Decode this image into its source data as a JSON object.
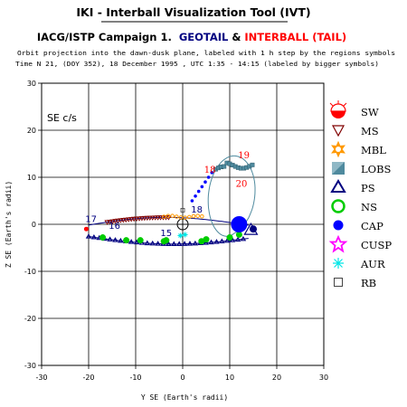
{
  "header": {
    "title": "IKI - Interball Visualization Tool (IVT)",
    "campaign": "IACG/ISTP Campaign 1.",
    "sat1": "GEOTAIL",
    "amp": "&",
    "sat2": "INTERBALL (TAIL)",
    "subtitle1": "Orbit projection into the dawn-dusk plane, labeled with 1 h step by the regions symbols",
    "subtitle2": "Time N 21, (DOY 352), 18 December 1995 ,  UTC 1:35 - 14:15 (labeled by bigger symbols)"
  },
  "colors": {
    "geotail": "#000080",
    "interball": "#ff0000"
  },
  "chart_data": {
    "type": "scatter",
    "frame_label": "SE c/s",
    "xlabel": "Y SE (Earth's radii)",
    "ylabel": "Z SE (Earth's radii)",
    "xlim": [
      -30,
      30
    ],
    "ylim": [
      -30,
      30
    ],
    "xticks": [
      -30,
      -20,
      -10,
      0,
      10,
      20,
      30
    ],
    "yticks": [
      -30,
      -20,
      -10,
      0,
      10,
      20,
      30
    ],
    "grid": true,
    "geotail_hour_labels": [
      {
        "text": "17",
        "x": -19.5,
        "y": 0.5
      },
      {
        "text": "16",
        "x": -14.5,
        "y": -1.0
      },
      {
        "text": "15",
        "x": -3.5,
        "y": -2.5
      },
      {
        "text": "18",
        "x": 3.0,
        "y": 2.5
      }
    ],
    "interball_hour_labels": [
      {
        "text": "19",
        "x": 13.0,
        "y": 14.0
      },
      {
        "text": "18",
        "x": 5.8,
        "y": 11.0
      },
      {
        "text": "20",
        "x": 12.5,
        "y": 8.0
      }
    ],
    "regions": [
      {
        "code": "SW",
        "name": "solar wind",
        "color": "#ff0000"
      },
      {
        "code": "MS",
        "name": "magnetosheath",
        "color": "#800000"
      },
      {
        "code": "MBL",
        "name": "magnetospheric boundary layer",
        "color": "#ff9900"
      },
      {
        "code": "LOBS",
        "name": "lobes",
        "color": "#4f8a9e"
      },
      {
        "code": "PS",
        "name": "plasma sheet",
        "color": "#000080"
      },
      {
        "code": "NS",
        "name": "neutral sheet",
        "color": "#00cc00"
      },
      {
        "code": "CAP",
        "name": "polar cap",
        "color": "#0000ff"
      },
      {
        "code": "CUSP",
        "name": "cusp",
        "color": "#ff00ff"
      },
      {
        "code": "AUR",
        "name": "auroral",
        "color": "#00e6e6"
      },
      {
        "code": "RB",
        "name": "radiation belt",
        "color": "#444444"
      }
    ]
  }
}
